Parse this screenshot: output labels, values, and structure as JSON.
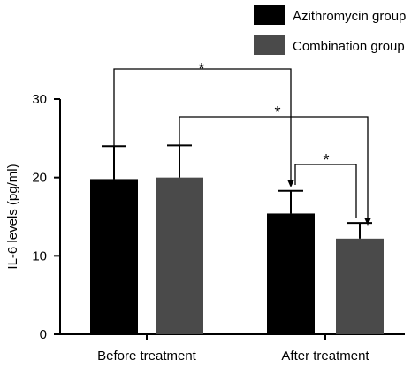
{
  "chart_data": {
    "type": "bar",
    "categories": [
      "Before treatment",
      "After treatment"
    ],
    "series": [
      {
        "name": "Azithromycin group",
        "color": "#000000",
        "values": [
          19.8,
          15.4
        ],
        "errors": [
          4.2,
          2.9
        ]
      },
      {
        "name": "Combination group",
        "color": "#4a4a4a",
        "values": [
          20.0,
          12.2
        ],
        "errors": [
          4.1,
          2.0
        ]
      }
    ],
    "ylabel": "IL-6 levels (pg/ml)",
    "xlabel": "",
    "ylim": [
      0,
      30
    ],
    "yticks": [
      0,
      10,
      20,
      30
    ],
    "legend_position": "top-right",
    "grid": false,
    "significance": [
      {
        "from": "Before treatment / Azithromycin group",
        "to": "After treatment / Azithromycin group",
        "label": "*"
      },
      {
        "from": "Before treatment / Combination group",
        "to": "After treatment / Combination group",
        "label": "*"
      },
      {
        "from": "After treatment / Azithromycin group",
        "to": "After treatment / Combination group",
        "label": "*"
      }
    ]
  }
}
